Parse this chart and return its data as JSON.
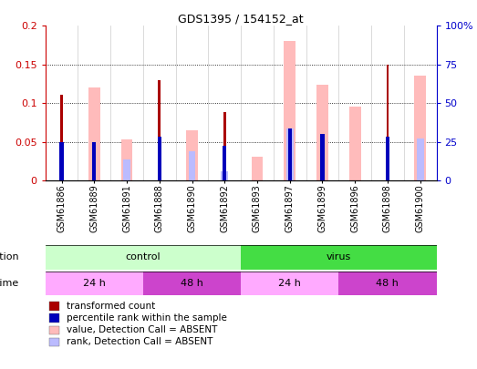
{
  "title": "GDS1395 / 154152_at",
  "samples": [
    "GSM61886",
    "GSM61889",
    "GSM61891",
    "GSM61888",
    "GSM61890",
    "GSM61892",
    "GSM61893",
    "GSM61897",
    "GSM61899",
    "GSM61896",
    "GSM61898",
    "GSM61900"
  ],
  "transformed_count": [
    0.111,
    0.0,
    0.0,
    0.13,
    0.0,
    0.089,
    0.0,
    0.0,
    0.0,
    0.0,
    0.15,
    0.0
  ],
  "percentile_rank_val": [
    0.05,
    0.05,
    0.0,
    0.057,
    0.0,
    0.045,
    0.0,
    0.067,
    0.06,
    0.0,
    0.057,
    0.0
  ],
  "value_absent": [
    0.0,
    0.12,
    0.053,
    0.0,
    0.065,
    0.0,
    0.031,
    0.18,
    0.124,
    0.096,
    0.0,
    0.136
  ],
  "rank_absent_val": [
    0.0,
    0.0,
    0.028,
    0.0,
    0.038,
    0.012,
    0.0,
    0.068,
    0.0,
    0.0,
    0.0,
    0.055
  ],
  "ylim_left": [
    0,
    0.2
  ],
  "yticks_left": [
    0,
    0.05,
    0.1,
    0.15,
    0.2
  ],
  "ytick_labels_left": [
    "0",
    "0.05",
    "0.1",
    "0.15",
    "0.2"
  ],
  "ytick_labels_right": [
    "0",
    "25",
    "50",
    "75",
    "100%"
  ],
  "color_transformed": "#aa0000",
  "color_percentile": "#0000bb",
  "color_value_absent": "#ffbbbb",
  "color_rank_absent": "#bbbbff",
  "infection_groups": [
    {
      "label": "control",
      "start": 0,
      "end": 6,
      "color": "#ccffcc"
    },
    {
      "label": "virus",
      "start": 6,
      "end": 12,
      "color": "#44dd44"
    }
  ],
  "time_groups": [
    {
      "label": "24 h",
      "start": 0,
      "end": 3,
      "color": "#ffaaff"
    },
    {
      "label": "48 h",
      "start": 3,
      "end": 6,
      "color": "#cc44cc"
    },
    {
      "label": "24 h",
      "start": 6,
      "end": 9,
      "color": "#ffaaff"
    },
    {
      "label": "48 h",
      "start": 9,
      "end": 12,
      "color": "#cc44cc"
    }
  ],
  "legend_items": [
    {
      "label": "transformed count",
      "color": "#aa0000"
    },
    {
      "label": "percentile rank within the sample",
      "color": "#0000bb"
    },
    {
      "label": "value, Detection Call = ABSENT",
      "color": "#ffbbbb"
    },
    {
      "label": "rank, Detection Call = ABSENT",
      "color": "#bbbbff"
    }
  ],
  "background_color": "#ffffff",
  "tick_color_left": "#cc0000",
  "tick_color_right": "#0000cc"
}
